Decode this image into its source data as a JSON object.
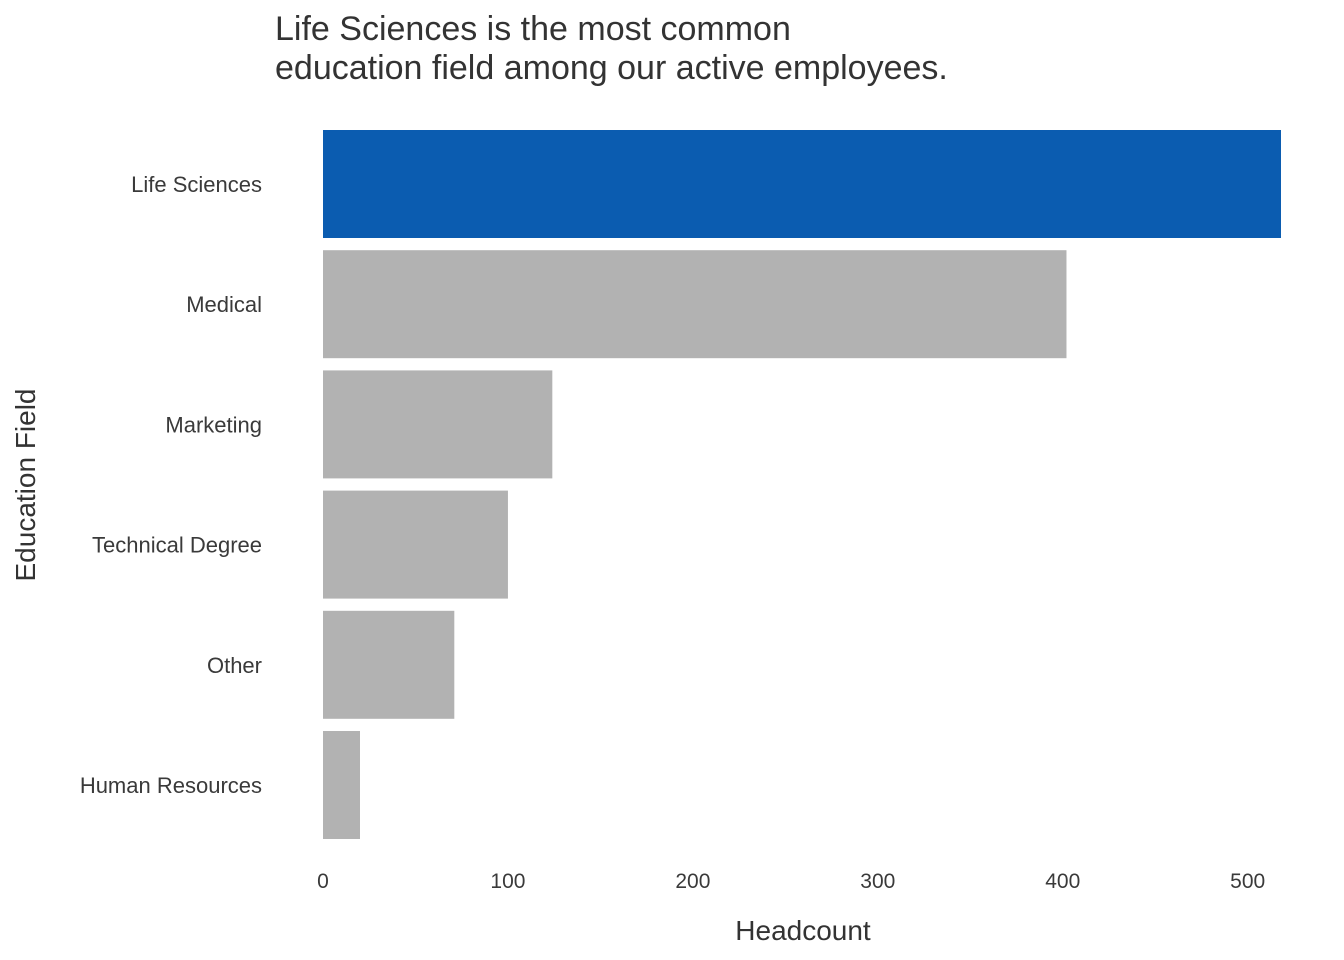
{
  "chart_data": {
    "type": "bar",
    "orientation": "horizontal",
    "title_lines": [
      "Life Sciences is the most common",
      "education field among our active employees."
    ],
    "xlabel": "Headcount",
    "ylabel": "Education Field",
    "categories": [
      "Life Sciences",
      "Medical",
      "Marketing",
      "Technical Degree",
      "Other",
      "Human Resources"
    ],
    "values": [
      518,
      402,
      124,
      100,
      71,
      20
    ],
    "highlight": "Life Sciences",
    "xlim": [
      0,
      518
    ],
    "xticks": [
      0,
      100,
      200,
      300,
      400,
      500
    ],
    "grid": false,
    "legend": "none",
    "colors": {
      "highlight": "#0b5cb0",
      "default": "#b2b2b2",
      "text": "#333333"
    }
  }
}
